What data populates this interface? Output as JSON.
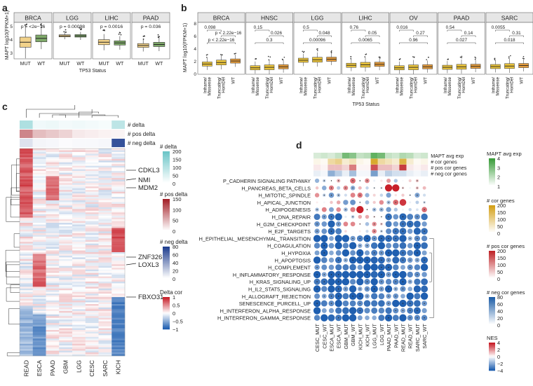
{
  "panels": {
    "a": {
      "letter": "a",
      "ylabel": "MAPT log10(FPKM+1)",
      "xlabel": "TP53 Status",
      "yticks": [
        "3",
        "4",
        "5"
      ],
      "facets": [
        {
          "name": "BRCA",
          "pval": "p = <2e−16",
          "groups": [
            "MUT",
            "WT"
          ]
        },
        {
          "name": "LGG",
          "pval": "p = 0.00098",
          "groups": [
            "MUT",
            "WT"
          ]
        },
        {
          "name": "LIHC",
          "pval": "p = 0.0016",
          "groups": [
            "MUT",
            "WT"
          ]
        },
        {
          "name": "PAAD",
          "pval": "p = 0.036",
          "groups": [
            "MUT",
            "WT"
          ]
        }
      ]
    },
    "b": {
      "letter": "b",
      "ylabel": "MAPT log10(FPKM+1)",
      "xlabel": "TP53 Status",
      "yticks": [
        "0",
        "2",
        "4",
        "6",
        "8"
      ],
      "groups": [
        "Inframe/ Missense",
        "Truncating/ HomDel",
        "WT"
      ],
      "facets": [
        {
          "name": "BRCA",
          "p_top": "0.098",
          "p_mid": "p < 2.22e−16",
          "p_low": "p < 2.22e−16"
        },
        {
          "name": "HNSC",
          "p_top": "0.15",
          "p_mid": "0.026",
          "p_low": "0.3"
        },
        {
          "name": "LGG",
          "p_top": "0.5",
          "p_mid": "0.048",
          "p_low": "0.00096"
        },
        {
          "name": "LIHC",
          "p_top": "0.76",
          "p_mid": "0.05",
          "p_low": "0.0065"
        },
        {
          "name": "OV",
          "p_top": "0.016",
          "p_mid": "0.27",
          "p_low": "0.96"
        },
        {
          "name": "PAAD",
          "p_top": "0.54",
          "p_mid": "0.14",
          "p_low": "0.027"
        },
        {
          "name": "SARC",
          "p_top": "0.0055",
          "p_mid": "0.31",
          "p_low": "0.018"
        }
      ]
    },
    "c": {
      "letter": "c",
      "row_labels": [
        "# delta",
        "# pos delta",
        "# neg delta"
      ],
      "genes": [
        "CDKL3",
        "NMI",
        "MDM2",
        "ZNF326",
        "LOXL3",
        "FBXO31"
      ],
      "columns": [
        "READ",
        "ESCA",
        "PAAD",
        "GBM",
        "LGG",
        "CESC",
        "SARC",
        "KICH"
      ],
      "legends": [
        {
          "title": "# delta",
          "ticks": [
            "200",
            "150",
            "100",
            "50",
            "0"
          ]
        },
        {
          "title": "# pos delta",
          "ticks": [
            "150",
            "100",
            "50",
            "0"
          ]
        },
        {
          "title": "# neg delta",
          "ticks": [
            "80",
            "60",
            "40",
            "20",
            "0"
          ]
        },
        {
          "title": "Delta cor",
          "ticks": [
            "1",
            "0.5",
            "0",
            "−0.5",
            "−1"
          ]
        }
      ]
    },
    "d": {
      "letter": "d",
      "annot_labels": [
        "MAPT avg exp",
        "# cor genes",
        "# pos cor genes",
        "# neg cor genes"
      ],
      "pathways": [
        "P_CADHERIN SIGNALING PATHWAY",
        "H_PANCREAS_BETA_CELLS",
        "H_MITOTIC_SPINDLE",
        "H_APICAL_JUNCTION",
        "H_ADIPOGENESIS",
        "H_DNA_REPAIR",
        "H_G2M_CHECKPOINT",
        "H_E2F_TARGETS",
        "H_EPITHELIAL_MESENCHYMAL_TRANSITION",
        "H_COAGULATION",
        "H_HYPOXIA",
        "H_APOPTOSIS",
        "H_COMPLEMENT",
        "H_INFLAMMATORY_RESPONSE",
        "H_KRAS_SIGNALING_UP",
        "H_IL2_STAT5_SIGNALING",
        "H_ALLOGRAFT_REJECTION",
        "SENESCENCE_PURCELL_UP",
        "H_INTERFERON_ALPHA_RESPONSE",
        "H_INTERFERON_GAMMA_RESPONSE"
      ],
      "columns": [
        "CESC_MUT",
        "CESC_WT",
        "ESCA_MUT",
        "ESCA_WT",
        "GBM_MUT",
        "GBM_WT",
        "KICH_MUT",
        "KICH_WT",
        "LGG_MUT",
        "LGG_WT",
        "PAAD_MUT",
        "PAAD_WT",
        "READ_MUT",
        "READ_WT",
        "SARC_MUT",
        "SARC_WT"
      ],
      "legends": [
        {
          "title": "MAPT avg exp",
          "ticks": [
            "4",
            "3",
            "2",
            "1"
          ]
        },
        {
          "title": "# cor genes",
          "ticks": [
            "200",
            "150",
            "100",
            "50",
            "0"
          ]
        },
        {
          "title": "# pos cor genes",
          "ticks": [
            "200",
            "150",
            "100",
            "50",
            "0"
          ]
        },
        {
          "title": "# neg cor genes",
          "ticks": [
            "80",
            "60",
            "40",
            "20",
            "0"
          ]
        },
        {
          "title": "NES",
          "ticks": [
            "4",
            "2",
            "0",
            "−2",
            "−4"
          ]
        }
      ]
    }
  },
  "colors": {
    "mut_box": "#f2d28a",
    "wt_box": "#7faa6a",
    "bar_box": "#e8c23c",
    "teal": "#6cc6c8",
    "red": "#c0262a",
    "blue": "#1f5fa8",
    "green": "#3a9d3a",
    "gold": "#d4a017"
  }
}
